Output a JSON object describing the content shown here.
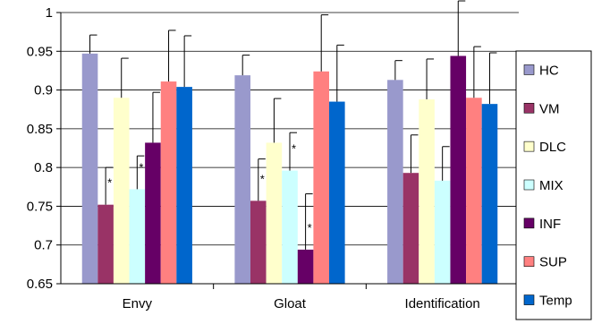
{
  "chart_data": {
    "type": "bar",
    "title": "",
    "xlabel": "",
    "ylabel": "",
    "ylim": [
      0.65,
      1.0
    ],
    "yticks": [
      "0.65",
      "0.7",
      "0.75",
      "0.8",
      "0.85",
      "0.9",
      "0.95",
      "1"
    ],
    "grid": true,
    "legend_position": "right",
    "categories": [
      "Envy",
      "Gloat",
      "Identification"
    ],
    "series": [
      {
        "name": "HC",
        "color": "#9999cc",
        "values": [
          0.947,
          0.919,
          0.913
        ],
        "errors": [
          0.024,
          0.026,
          0.025
        ],
        "significant": [
          false,
          false,
          false
        ]
      },
      {
        "name": "VM",
        "color": "#993366",
        "values": [
          0.752,
          0.757,
          0.793
        ],
        "errors": [
          0.048,
          0.054,
          0.049
        ],
        "significant": [
          true,
          true,
          false
        ]
      },
      {
        "name": "DLC",
        "color": "#ffffcc",
        "values": [
          0.89,
          0.832,
          0.888
        ],
        "errors": [
          0.051,
          0.057,
          0.052
        ],
        "significant": [
          false,
          false,
          false
        ]
      },
      {
        "name": "MIX",
        "color": "#ccffff",
        "values": [
          0.772,
          0.796,
          0.783
        ],
        "errors": [
          0.043,
          0.049,
          0.044
        ],
        "significant": [
          true,
          true,
          false
        ]
      },
      {
        "name": "INF",
        "color": "#660066",
        "values": [
          0.832,
          0.694,
          0.944
        ],
        "errors": [
          0.065,
          0.072,
          0.071
        ],
        "significant": [
          false,
          true,
          false
        ]
      },
      {
        "name": "SUP",
        "color": "#ff8080",
        "values": [
          0.911,
          0.924,
          0.89
        ],
        "errors": [
          0.066,
          0.073,
          0.066
        ],
        "significant": [
          false,
          false,
          false
        ]
      },
      {
        "name": "Temp",
        "color": "#0066cc",
        "values": [
          0.904,
          0.885,
          0.882
        ],
        "errors": [
          0.066,
          0.073,
          0.066
        ],
        "significant": [
          false,
          false,
          false
        ]
      }
    ],
    "significance_marker": "*"
  }
}
